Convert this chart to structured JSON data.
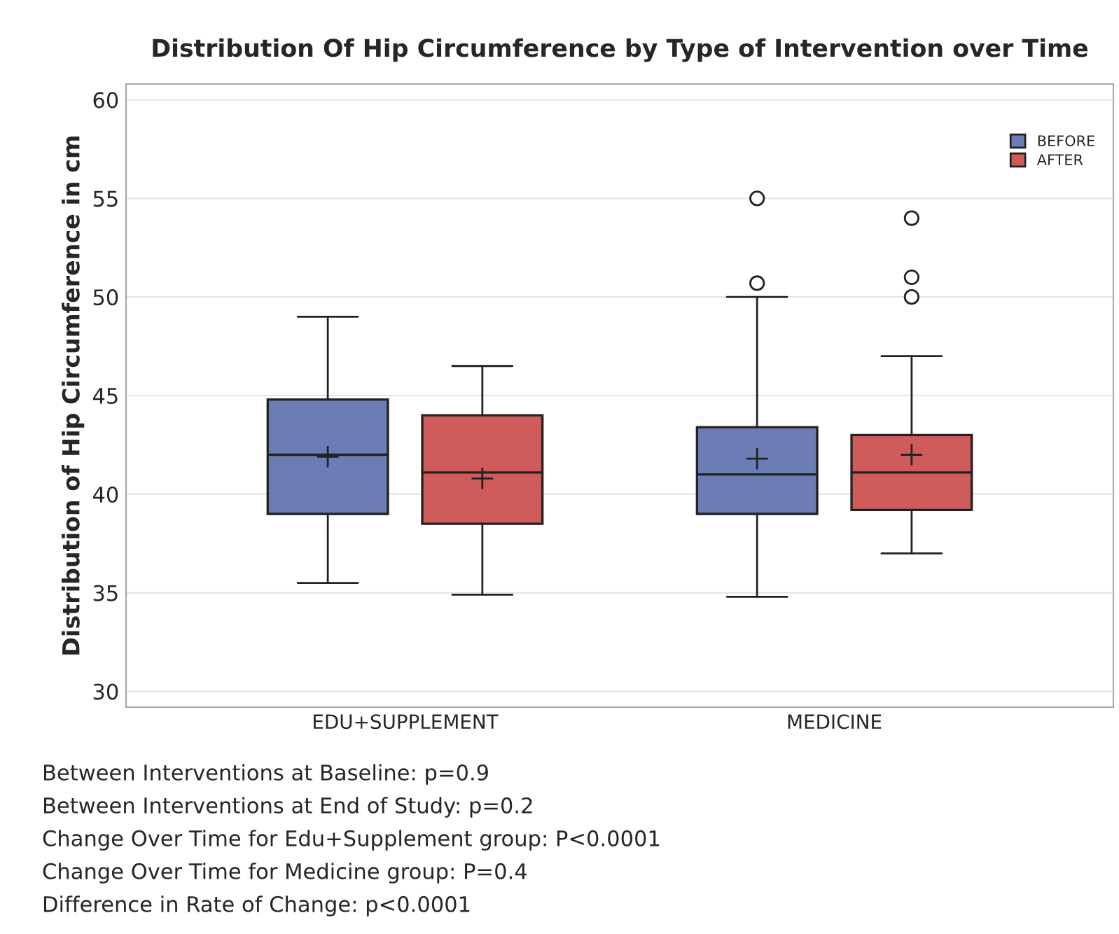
{
  "chart_data": {
    "type": "box",
    "title": "Distribution Of Hip Circumference by Type of Intervention over Time",
    "ylabel": "Distribution of Hip Circumference in cm",
    "categories": [
      "EDU+SUPPLEMENT",
      "MEDICINE"
    ],
    "series": [
      {
        "name": "BEFORE",
        "color": "#6b7db4",
        "boxes": [
          {
            "low": 35.5,
            "q1": 39,
            "median": 42,
            "q3": 44.8,
            "high": 49,
            "mean": 41.9
          },
          {
            "low": 34.8,
            "q1": 39,
            "median": 41,
            "q3": 43.4,
            "high": 50,
            "mean": 41.8,
            "outliers": [
              55,
              50.7
            ]
          }
        ]
      },
      {
        "name": "AFTER",
        "color": "#cf5b5b",
        "boxes": [
          {
            "low": 34.9,
            "q1": 38.5,
            "median": 41.1,
            "q3": 44,
            "high": 46.5,
            "mean": 40.8
          },
          {
            "low": 37,
            "q1": 39.2,
            "median": 41.1,
            "q3": 43,
            "high": 47,
            "mean": 42,
            "outliers": [
              54,
              51,
              50
            ]
          }
        ]
      }
    ],
    "ylim": [
      29.2,
      60.8
    ],
    "yticks": [
      30,
      35,
      40,
      45,
      50,
      55,
      60
    ],
    "grid": "y",
    "legend": "top right",
    "annotations": [
      "Between Interventions at Baseline: p=0.9",
      "Between Interventions at End of Study: p=0.2",
      "Change Over Time for Edu+Supplement group: P<0.0001",
      "Change Over Time for Medicine group: P=0.4",
      "Difference in Rate of Change: p<0.0001"
    ]
  }
}
